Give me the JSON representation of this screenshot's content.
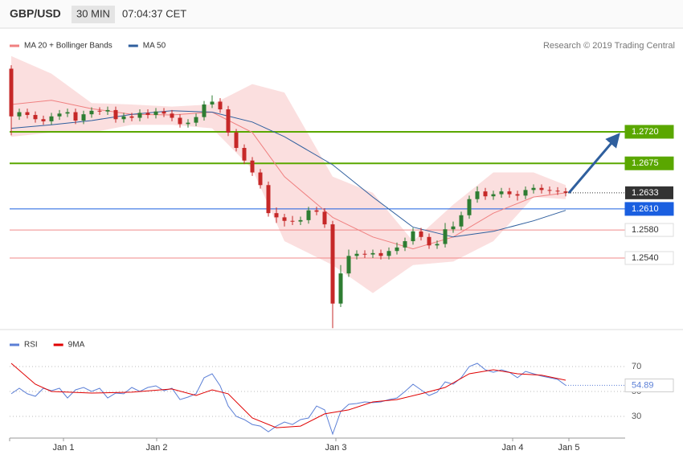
{
  "chart_data": [
    {
      "type": "candlestick",
      "title": "GBP/USD",
      "subtitle": "30 MIN",
      "time": "07:04:37 CET",
      "source": "Research © 2019 Trading Central",
      "xlim": [
        -0.2,
        76.4
      ],
      "ylim": [
        1.244,
        1.284
      ],
      "up_color": "#2e7d32",
      "down_color": "#c62828",
      "open": [
        1.281,
        1.2742,
        1.2748,
        1.2744,
        1.2738,
        1.2735,
        1.2742,
        1.2746,
        1.2748,
        1.2736,
        1.2745,
        1.275,
        1.2749,
        1.2751,
        1.2738,
        1.2742,
        1.274,
        1.2747,
        1.2744,
        1.2749,
        1.2746,
        1.274,
        1.2731,
        1.2733,
        1.2741,
        1.2759,
        1.2763,
        1.2752,
        1.2719,
        1.2697,
        1.2679,
        1.2662,
        1.2644,
        1.2604,
        1.2598,
        1.2593,
        1.2592,
        1.2594,
        1.2608,
        1.2606,
        1.2588,
        1.2475,
        1.2518,
        1.2543,
        1.2546,
        1.2545,
        1.2547,
        1.2543,
        1.255,
        1.2555,
        1.2564,
        1.2578,
        1.257,
        1.2558,
        1.256,
        1.2581,
        1.2585,
        1.2601,
        1.2624,
        1.2635,
        1.2628,
        1.2631,
        1.2635,
        1.2631,
        1.2629,
        1.2637,
        1.264,
        1.2637,
        1.2636,
        1.2635
      ],
      "high": [
        1.2815,
        1.2753,
        1.2753,
        1.2749,
        1.2743,
        1.2747,
        1.2751,
        1.2753,
        1.2753,
        1.275,
        1.2755,
        1.2755,
        1.2756,
        1.2756,
        1.2747,
        1.2747,
        1.2752,
        1.2752,
        1.2754,
        1.2754,
        1.2751,
        1.2745,
        1.2738,
        1.2746,
        1.2764,
        1.2772,
        1.2768,
        1.2757,
        1.2724,
        1.2702,
        1.2684,
        1.2667,
        1.2649,
        1.2612,
        1.2603,
        1.26,
        1.2599,
        1.2613,
        1.2613,
        1.2611,
        1.2593,
        1.253,
        1.2552,
        1.2551,
        1.2551,
        1.2552,
        1.2552,
        1.2555,
        1.2562,
        1.2569,
        1.2583,
        1.2583,
        1.2575,
        1.2565,
        1.259,
        1.2592,
        1.2606,
        1.2629,
        1.2642,
        1.264,
        1.2636,
        1.264,
        1.264,
        1.2636,
        1.2642,
        1.2645,
        1.2645,
        1.2642,
        1.2641,
        1.264
      ],
      "low": [
        1.2715,
        1.2737,
        1.2739,
        1.2733,
        1.273,
        1.273,
        1.2737,
        1.2741,
        1.2731,
        1.2731,
        1.274,
        1.2744,
        1.2744,
        1.2733,
        1.2733,
        1.2735,
        1.2735,
        1.2739,
        1.2739,
        1.2741,
        1.2735,
        1.2726,
        1.2726,
        1.2728,
        1.2736,
        1.2754,
        1.2747,
        1.2714,
        1.2692,
        1.2674,
        1.2657,
        1.2639,
        1.2599,
        1.259,
        1.2585,
        1.2587,
        1.2587,
        1.2589,
        1.2601,
        1.2583,
        1.244,
        1.247,
        1.2513,
        1.2538,
        1.254,
        1.254,
        1.2538,
        1.2538,
        1.2545,
        1.255,
        1.2559,
        1.2565,
        1.2553,
        1.2553,
        1.2555,
        1.2576,
        1.258,
        1.2596,
        1.2619,
        1.2623,
        1.2623,
        1.2626,
        1.2626,
        1.2622,
        1.2624,
        1.2632,
        1.2632,
        1.2631,
        1.263,
        1.2628
      ],
      "close": [
        1.2742,
        1.2748,
        1.2744,
        1.2738,
        1.2735,
        1.2742,
        1.2746,
        1.2748,
        1.2736,
        1.2745,
        1.275,
        1.2749,
        1.2751,
        1.2738,
        1.2742,
        1.274,
        1.2747,
        1.2744,
        1.2749,
        1.2746,
        1.274,
        1.2731,
        1.2733,
        1.2741,
        1.2759,
        1.2763,
        1.2752,
        1.2719,
        1.2697,
        1.2679,
        1.2662,
        1.2644,
        1.2604,
        1.2598,
        1.2593,
        1.2592,
        1.2594,
        1.2608,
        1.2606,
        1.2588,
        1.2475,
        1.2518,
        1.2543,
        1.2546,
        1.2545,
        1.2547,
        1.2543,
        1.255,
        1.2555,
        1.2564,
        1.2578,
        1.257,
        1.2558,
        1.256,
        1.2581,
        1.2585,
        1.2601,
        1.2624,
        1.2635,
        1.2628,
        1.2631,
        1.2635,
        1.2631,
        1.2629,
        1.2637,
        1.264,
        1.2637,
        1.2636,
        1.2635,
        1.2633
      ],
      "overlays": [
        {
          "name": "MA 20 + Bollinger Bands",
          "color": "#f08080",
          "x": [
            0,
            5,
            10,
            15,
            20,
            25,
            30,
            34,
            40,
            45,
            50,
            55,
            60,
            65,
            69
          ],
          "values": [
            1.2759,
            1.2765,
            1.2753,
            1.2745,
            1.2744,
            1.2748,
            1.2719,
            1.2656,
            1.2598,
            1.257,
            1.2553,
            1.257,
            1.2604,
            1.2627,
            1.2633
          ],
          "upper": [
            1.2828,
            1.2803,
            1.2761,
            1.2759,
            1.2756,
            1.2759,
            1.2788,
            1.2776,
            1.2656,
            1.2633,
            1.2564,
            1.2616,
            1.2662,
            1.2662,
            1.2644
          ],
          "lower": [
            1.2713,
            1.2719,
            1.2719,
            1.273,
            1.273,
            1.2725,
            1.2667,
            1.2564,
            1.253,
            1.249,
            1.253,
            1.2535,
            1.2564,
            1.2627,
            1.2624
          ]
        },
        {
          "name": "MA 50",
          "color": "#2f5f9e",
          "x": [
            0,
            5,
            10,
            15,
            20,
            25,
            30,
            34,
            40,
            45,
            50,
            55,
            60,
            65,
            69
          ],
          "values": [
            1.2725,
            1.273,
            1.2736,
            1.2745,
            1.275,
            1.2748,
            1.2734,
            1.2713,
            1.2673,
            1.2627,
            1.2584,
            1.257,
            1.2578,
            1.2593,
            1.2608
          ]
        }
      ],
      "levels": [
        {
          "value": 1.272,
          "label": "1.2720",
          "color": "#5aa700"
        },
        {
          "value": 1.2675,
          "color": "#5aa700"
        },
        {
          "value": 1.261,
          "label": "1.2610",
          "color": "#1a5fe0"
        },
        {
          "value": 1.258,
          "label": "1.2580",
          "color": "#f08a8a"
        },
        {
          "value": 1.254,
          "label": "1.2540",
          "color": "#f08a8a"
        }
      ]
    },
    {
      "type": "line",
      "xlim": [
        -0.2,
        76.4
      ],
      "ylim": [
        12,
        92
      ],
      "yticks": [
        30,
        50,
        70
      ],
      "xticks": [
        {
          "value": 6.5,
          "label": "Jan 1"
        },
        {
          "value": 18.1,
          "label": "Jan 2"
        },
        {
          "value": 40.4,
          "label": "Jan 3"
        },
        {
          "value": 62.4,
          "label": "Jan 4"
        },
        {
          "value": 69.4,
          "label": "Jan 5"
        }
      ],
      "series": [
        {
          "name": "RSI",
          "color": "#5b7fd6",
          "values": [
            48.1,
            52.6,
            48.1,
            46.1,
            52.6,
            50.6,
            52.6,
            44.8,
            51.3,
            53.2,
            50.0,
            52.6,
            44.8,
            48.7,
            48.1,
            53.2,
            50.0,
            53.2,
            54.5,
            50.6,
            52.6,
            43.5,
            45.5,
            48.1,
            61.0,
            64.2,
            54.5,
            38.3,
            30.0,
            27.4,
            23.5,
            22.2,
            17.7,
            22.2,
            25.5,
            23.5,
            27.4,
            28.7,
            38.3,
            35.2,
            15.8,
            33.9,
            39.7,
            40.3,
            41.6,
            41.0,
            41.6,
            43.5,
            44.8,
            50.0,
            55.8,
            51.3,
            46.8,
            49.4,
            57.7,
            55.8,
            61.0,
            70.0,
            72.6,
            67.4,
            65.4,
            67.4,
            65.4,
            61.0,
            66.1,
            64.2,
            62.3,
            61.0,
            59.7,
            54.89
          ]
        },
        {
          "name": "9MA",
          "color": "#e00000",
          "x": [
            0,
            3,
            5,
            10,
            15,
            20,
            23,
            25,
            27,
            30,
            33,
            36,
            39,
            42,
            45,
            48,
            51,
            54,
            57,
            60,
            63,
            66,
            69
          ],
          "values": [
            72.6,
            55.8,
            50,
            48.7,
            49.4,
            52,
            46.8,
            51.3,
            48.1,
            28.7,
            20.9,
            22.2,
            32,
            35.2,
            41.6,
            43.5,
            48.1,
            53.2,
            64.2,
            67.4,
            64.2,
            63,
            59
          ]
        }
      ]
    }
  ]
}
